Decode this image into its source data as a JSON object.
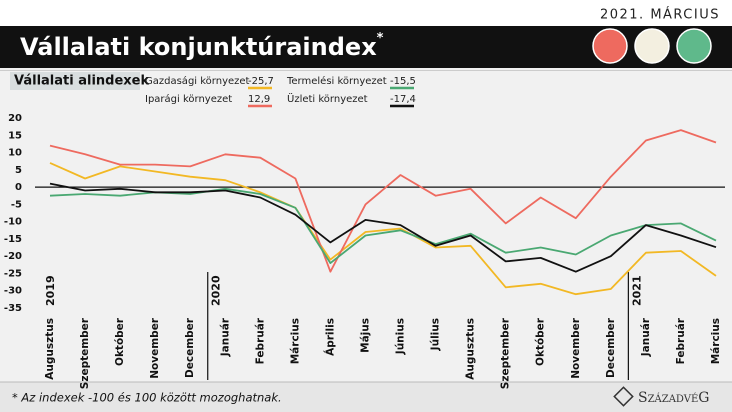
{
  "date_label": "2021. MÁRCIUS",
  "title": "Vállalati konjunktúraindex",
  "title_sup": "*",
  "footnote": "* Az indexek -100 és 100 között mozoghatnak.",
  "brand": "SzázadvéG",
  "chart_data": {
    "type": "line",
    "subtitle": "Vállalati alindexek",
    "categories": [
      "Augusztus",
      "Szeptember",
      "Október",
      "November",
      "December",
      "Január",
      "Február",
      "Március",
      "Április",
      "Május",
      "Június",
      "Július",
      "Augusztus",
      "Szeptember",
      "Október",
      "November",
      "December",
      "Január",
      "Február",
      "Március"
    ],
    "years": [
      {
        "label": "2019",
        "at": 0
      },
      {
        "label": "2020",
        "at": 5
      },
      {
        "label": "2021",
        "at": 17
      }
    ],
    "series": [
      {
        "name": "Gazdasági környezet",
        "color": "#f2b824",
        "values": [
          7,
          2.5,
          6,
          4.5,
          3,
          2,
          -1.5,
          -6,
          -21,
          -13,
          -12,
          -17.5,
          -17,
          -29,
          -28,
          -31,
          -29.5,
          -19,
          -18.5,
          -25.7
        ],
        "value_labels": [
          null,
          null,
          null,
          null,
          null,
          null,
          null,
          null,
          null,
          null,
          null,
          null,
          null,
          null,
          null,
          null,
          null,
          null,
          null,
          "-25,7"
        ]
      },
      {
        "name": "Iparági környezet",
        "color": "#ee6a5f",
        "values": [
          12,
          9.5,
          6.5,
          6.5,
          6,
          9.5,
          8.5,
          2.5,
          -24.5,
          -5,
          3.5,
          -2.5,
          -0.5,
          -10.5,
          -3,
          -9,
          3,
          13.5,
          16.5,
          12.9
        ],
        "value_labels": [
          null,
          null,
          null,
          null,
          null,
          null,
          null,
          null,
          null,
          null,
          null,
          null,
          null,
          null,
          null,
          null,
          null,
          null,
          null,
          "12,9"
        ]
      },
      {
        "name": "Termelési környezet",
        "color": "#4aa872",
        "values": [
          -2.5,
          -2,
          -2.5,
          -1.5,
          -2,
          -0.5,
          -2,
          -6,
          -22,
          -14,
          -12.5,
          -16.5,
          -13.5,
          -19,
          -17.5,
          -19.5,
          -14,
          -11,
          -10.5,
          -15.5
        ],
        "value_labels": [
          null,
          null,
          null,
          null,
          null,
          null,
          null,
          null,
          null,
          null,
          null,
          null,
          null,
          null,
          null,
          null,
          null,
          null,
          null,
          "-15,5"
        ]
      },
      {
        "name": "Üzleti környezet",
        "color": "#111111",
        "values": [
          1,
          -1,
          -0.5,
          -1.5,
          -1.5,
          -1,
          -3,
          -8,
          -16,
          -9.5,
          -11,
          -17,
          -14,
          -21.5,
          -20.5,
          -24.5,
          -20,
          -11,
          -14,
          -17.4
        ],
        "value_labels": [
          null,
          null,
          null,
          null,
          null,
          null,
          null,
          null,
          null,
          null,
          null,
          null,
          null,
          null,
          null,
          null,
          null,
          null,
          null,
          "-17,4"
        ]
      }
    ],
    "ylim": [
      -35,
      20
    ],
    "yticks": [
      -35,
      -30,
      -25,
      -20,
      -15,
      -10,
      -5,
      0,
      5,
      10,
      15,
      20
    ],
    "grid": false
  }
}
